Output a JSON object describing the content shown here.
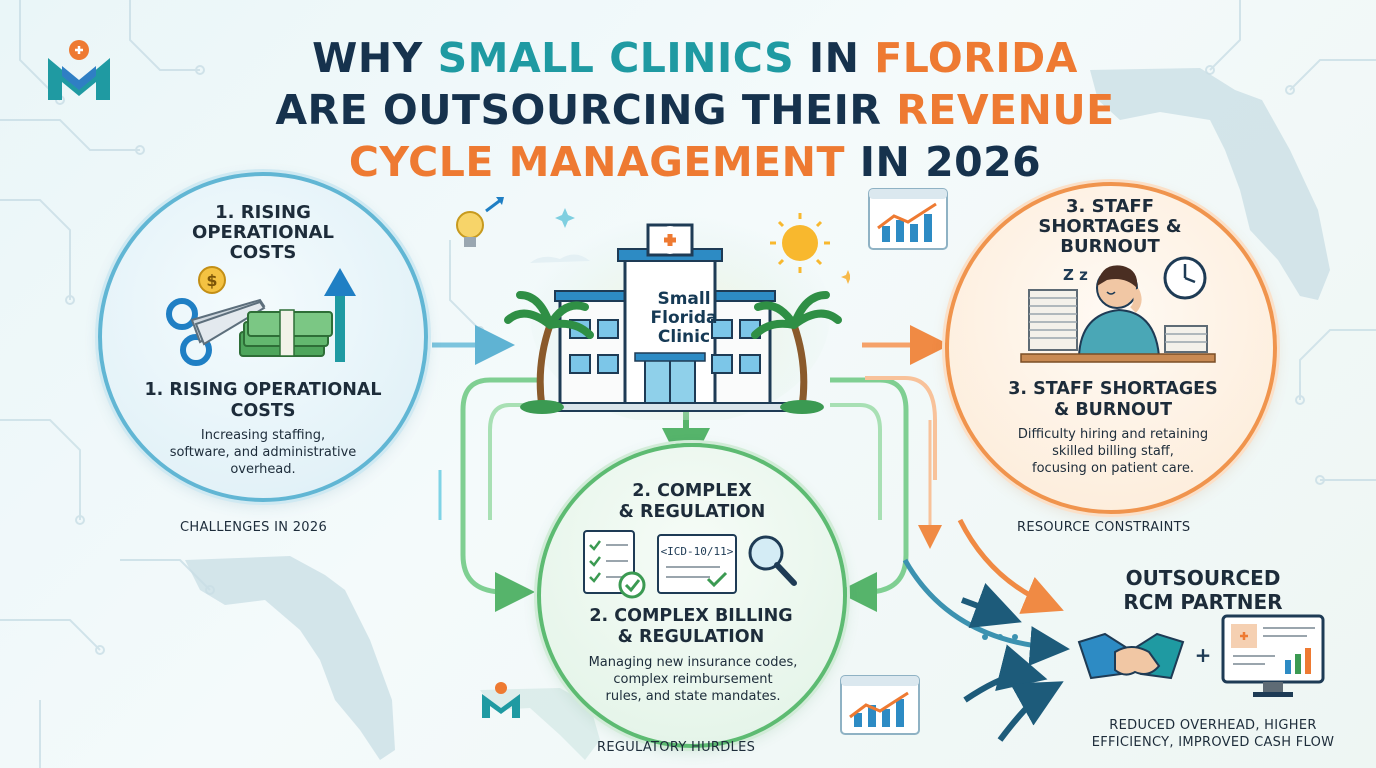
{
  "title": {
    "part1": "WHY ",
    "part2": "SMALL CLINICS",
    "part3": " IN ",
    "part4": "FLORIDA",
    "part5": "ARE OUTSOURCING THEIR ",
    "part6": "REVENUE",
    "part7": "CYCLE MANAGEMENT",
    "part8": " IN 2026"
  },
  "left": {
    "heading_top": [
      "1. RISING",
      "OPERATIONAL",
      "COSTS"
    ],
    "heading_bottom": [
      "1. RISING OPERATIONAL",
      "COSTS"
    ],
    "body": [
      "Increasing staffing,",
      "software, and administrative",
      "overhead."
    ],
    "caption": "CHALLENGES IN 2026",
    "dollar": "$"
  },
  "center": {
    "clinic_label": [
      "Small",
      "Florida",
      "Clinic"
    ]
  },
  "right": {
    "heading_top": [
      "3. STAFF",
      "SHORTAGES &",
      "BURNOUT"
    ],
    "heading_bottom": [
      "3. STAFF SHORTAGES",
      "& BURNOUT"
    ],
    "body": [
      "Difficulty hiring and retaining",
      "skilled billing staff,",
      "focusing on patient care."
    ],
    "caption": "RESOURCE CONSTRAINTS",
    "zzz": "Z z"
  },
  "middle": {
    "heading_top": [
      "2. COMPLEX",
      "& REGULATION"
    ],
    "code_tag": "<ICD-10/11>",
    "heading_bottom": [
      "2. COMPLEX BILLING",
      "& REGULATION"
    ],
    "body": [
      "Managing new insurance codes,",
      "complex reimbursement",
      "rules, and state mandates."
    ],
    "caption": "REGULATORY HURDLES"
  },
  "partner": {
    "heading": [
      "OUTSOURCED",
      "RCM PARTNER"
    ],
    "plus": "+",
    "caption": [
      "REDUCED OVERHEAD, HIGHER",
      "EFFICIENCY, IMPROVED CASH FLOW"
    ]
  },
  "colors": {
    "teal": "#1f9aa2",
    "orange": "#ee7a32",
    "navy": "#16324d",
    "blue_ring": "#61b6d4",
    "orange_ring": "#f0944d",
    "green_ring": "#5dbb72"
  },
  "icons": [
    "logo-icon",
    "lightbulb-icon",
    "sun-icon",
    "chart-icon",
    "scissors-icon",
    "money-stack-icon",
    "up-arrow-icon",
    "clock-icon",
    "paper-stack-icon",
    "checklist-icon",
    "magnifier-icon",
    "handshake-icon",
    "monitor-icon",
    "palm-tree-icon",
    "hospital-icon",
    "florida-map-icon",
    "circuit-pattern-icon"
  ]
}
